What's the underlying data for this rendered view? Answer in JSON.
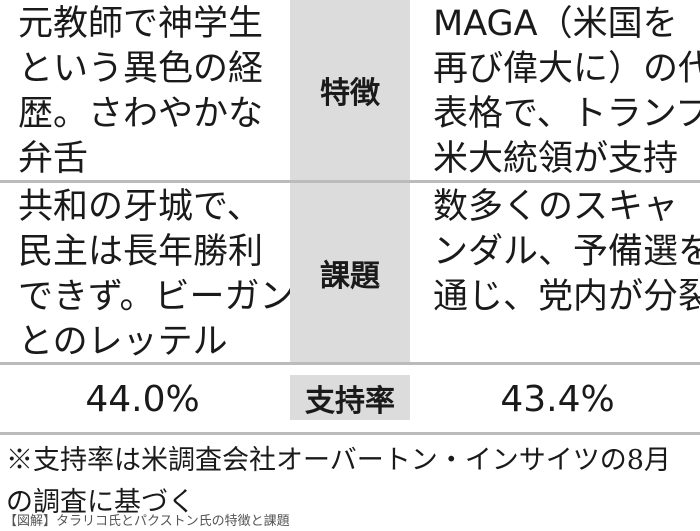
{
  "table": {
    "rows": [
      {
        "left": [
          "元教師で神学生",
          "という異色の経",
          "歴。さわやかな",
          "弁舌"
        ],
        "label": "特徴",
        "right": [
          "MAGA（米国を",
          "再び偉大に）の代",
          "表格で、トランプ",
          "米大統領が支持"
        ]
      },
      {
        "left": [
          "共和の牙城で、",
          "民主は長年勝利",
          "できず。ビーガン",
          "とのレッテル"
        ],
        "label": "課題",
        "right": [
          "数多くのスキャ",
          "ンダル、予備選を",
          "通じ、党内が分裂"
        ]
      },
      {
        "left": [
          "44.0%"
        ],
        "label": "支持率",
        "right": [
          "43.4%"
        ]
      }
    ]
  },
  "footnote": "※支持率は米調査会社オーバートン・インサイツの8月の調査に基づく",
  "caption": "【図解】タラリコ氏とパクストン氏の特徴と課題"
}
